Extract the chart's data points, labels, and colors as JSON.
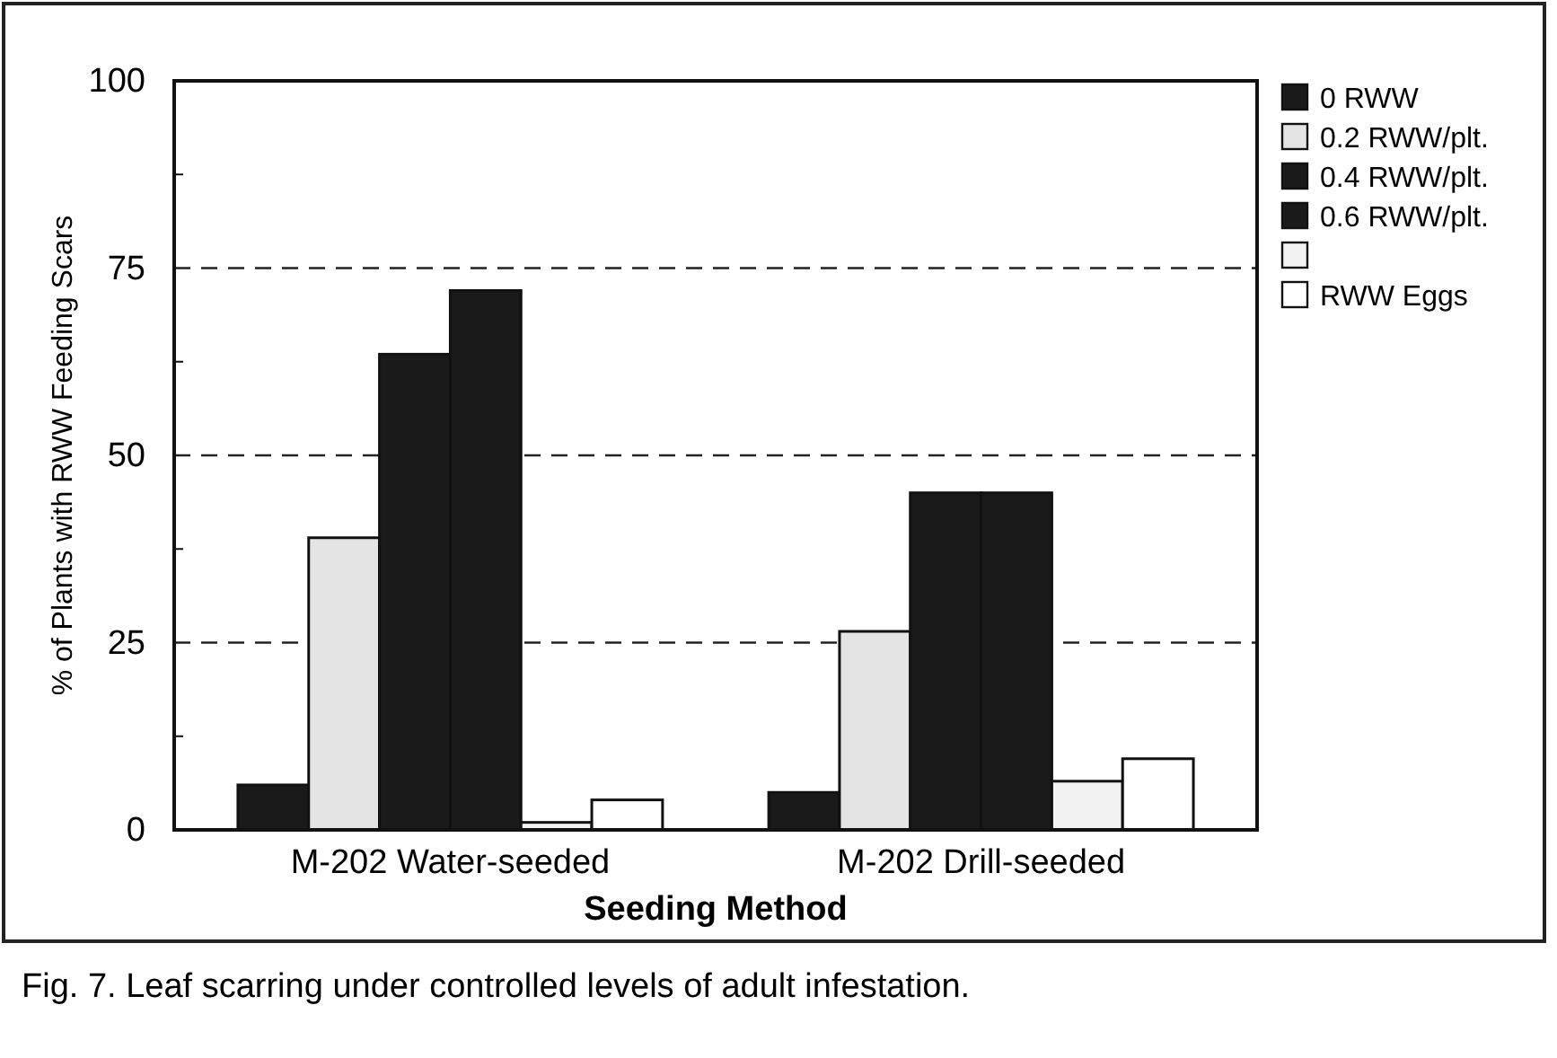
{
  "chart_data": {
    "type": "bar",
    "xlabel": "Seeding Method",
    "ylabel": "% of Plants with RWW Feeding Scars",
    "categories": [
      "M-202 Water-seeded",
      "M-202 Drill-seeded"
    ],
    "series": [
      {
        "name": "0 RWW",
        "color": "#1a1a1a",
        "values": [
          6,
          5
        ]
      },
      {
        "name": "0.2 RWW/plt.",
        "color": "#e4e4e4",
        "values": [
          39,
          26.5
        ]
      },
      {
        "name": "0.4 RWW/plt.",
        "color": "#1a1a1a",
        "values": [
          63.5,
          45
        ]
      },
      {
        "name": "0.6 RWW/plt.",
        "color": "#1a1a1a",
        "values": [
          72,
          45
        ]
      },
      {
        "color": "#f2f2f2",
        "values": [
          1,
          6.5
        ]
      },
      {
        "name": "RWW Eggs",
        "color": "#ffffff",
        "values": [
          4,
          9.5
        ]
      }
    ],
    "ylim": [
      0,
      100
    ],
    "yticks": [
      0,
      {
        "value": 12.5,
        "label": null
      },
      25,
      {
        "value": 37.5,
        "label": null
      },
      50,
      {
        "value": 62.5,
        "label": null
      },
      75,
      {
        "value": 87.5,
        "label": null
      },
      100
    ],
    "ref_lines": [
      {
        "axis": "y",
        "value": 25,
        "line_style": "dashed"
      },
      {
        "axis": "y",
        "value": 50,
        "line_style": "dashed"
      },
      {
        "axis": "y",
        "value": 75,
        "line_style": "dashed"
      }
    ],
    "legend": "right",
    "annotations": [
      "Fig. 7.  Leaf scarring under controlled levels of adult infestation."
    ]
  }
}
